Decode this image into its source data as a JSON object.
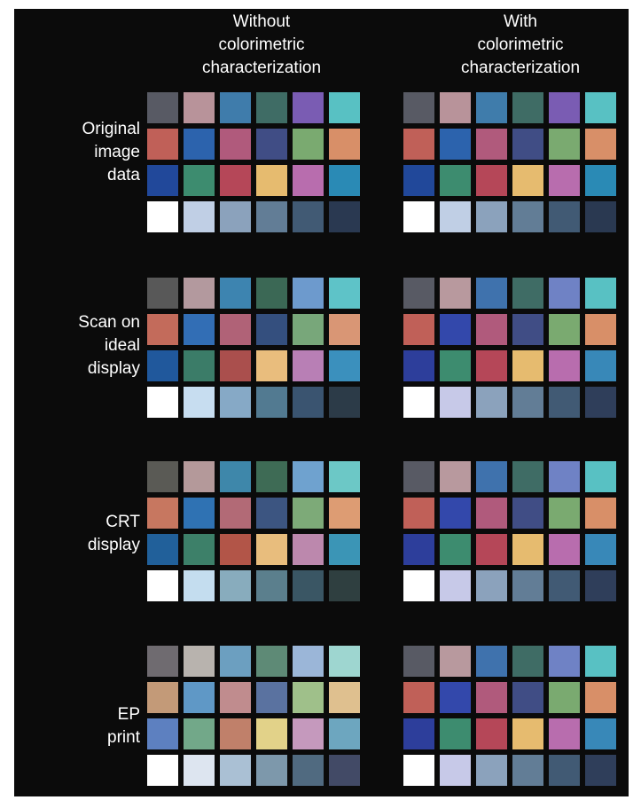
{
  "figure": {
    "columns": [
      {
        "label": "Without\ncolorimetric\ncharacterization"
      },
      {
        "label": "With\ncolorimetric\ncharacterization"
      }
    ],
    "rows": [
      {
        "label": "Original\nimage\ndata",
        "without": [
          [
            "#585a64",
            "#b8939a",
            "#3f7cab",
            "#3f6c65",
            "#7a5cb3",
            "#58c1c3"
          ],
          [
            "#c06058",
            "#2c63ad",
            "#b05a7c",
            "#404d85",
            "#7aaa70",
            "#d88f68"
          ],
          [
            "#21489a",
            "#3d8c6f",
            "#b54758",
            "#e6bb6f",
            "#b86dae",
            "#2a8ab5"
          ],
          [
            "#ffffff",
            "#c0cfe5",
            "#8ba2bc",
            "#627d96",
            "#415a74",
            "#2a3951"
          ]
        ],
        "with": [
          [
            "#585a64",
            "#b8939a",
            "#3f7cab",
            "#3f6c65",
            "#7a5cb3",
            "#58c1c3"
          ],
          [
            "#c06058",
            "#2c63ad",
            "#b05a7c",
            "#404d85",
            "#7aaa70",
            "#d88f68"
          ],
          [
            "#21489a",
            "#3d8c6f",
            "#b54758",
            "#e6bb6f",
            "#b86dae",
            "#2a8ab5"
          ],
          [
            "#ffffff",
            "#c0cfe5",
            "#8ba2bc",
            "#627d96",
            "#415a74",
            "#2a3951"
          ]
        ]
      },
      {
        "label": "Scan on\nideal\ndisplay",
        "without": [
          [
            "#585858",
            "#b3999e",
            "#3d84b0",
            "#3b6855",
            "#6d9acd",
            "#5ec3c8"
          ],
          [
            "#c36b5b",
            "#326eb5",
            "#b06277",
            "#344f7e",
            "#78a77a",
            "#d99675"
          ],
          [
            "#20589c",
            "#3b7c68",
            "#aa4f4d",
            "#e9bd7d",
            "#b87fb5",
            "#3b90bd"
          ],
          [
            "#ffffff",
            "#c7ddf0",
            "#86a9c6",
            "#527a91",
            "#3a5470",
            "#2c3b48"
          ]
        ],
        "with": [
          [
            "#585a64",
            "#b8999e",
            "#3f72ad",
            "#3f6c65",
            "#6f82c5",
            "#58c1c3"
          ],
          [
            "#c06058",
            "#3348ab",
            "#b05a7c",
            "#404d85",
            "#7aaa70",
            "#d88f68"
          ],
          [
            "#2d3e9b",
            "#3d8c6f",
            "#b54758",
            "#e6bb6f",
            "#b86dae",
            "#3888b8"
          ],
          [
            "#ffffff",
            "#c7c9e8",
            "#8ba2bc",
            "#627d96",
            "#415a74",
            "#2f3e5a"
          ]
        ]
      },
      {
        "label": "CRT\ndisplay",
        "without": [
          [
            "#5a5a55",
            "#b4999a",
            "#3e87aa",
            "#3e6b55",
            "#6fa2cf",
            "#6cc8c6"
          ],
          [
            "#c77760",
            "#2f72b3",
            "#b26a76",
            "#3c5581",
            "#7daa78",
            "#dd9c73"
          ],
          [
            "#21609a",
            "#3d8069",
            "#b25548",
            "#e8bd7d",
            "#bc88ad",
            "#3b95b6"
          ],
          [
            "#ffffff",
            "#c4ddef",
            "#88acbd",
            "#5b7f8d",
            "#3a5664",
            "#2f3f40"
          ]
        ],
        "with": [
          [
            "#585a64",
            "#b8999e",
            "#3f72ad",
            "#3f6c65",
            "#6f82c5",
            "#58c1c3"
          ],
          [
            "#c06058",
            "#3348ab",
            "#b05a7c",
            "#404d85",
            "#7aaa70",
            "#d88f68"
          ],
          [
            "#2d3e9b",
            "#3d8c6f",
            "#b54758",
            "#e6bb6f",
            "#b86dae",
            "#3888b8"
          ],
          [
            "#ffffff",
            "#c7c9e8",
            "#8ba2bc",
            "#627d96",
            "#415a74",
            "#2f3e5a"
          ]
        ]
      },
      {
        "label": "EP\nprint",
        "without": [
          [
            "#6f6b70",
            "#b8b3ae",
            "#6c9fc0",
            "#5e8a76",
            "#9bb6d8",
            "#9ed6d0"
          ],
          [
            "#c39a78",
            "#5f98c6",
            "#c08c8e",
            "#5a72a0",
            "#9fc08a",
            "#dfc08f"
          ],
          [
            "#5d80c0",
            "#72a889",
            "#c0806a",
            "#e2d289",
            "#c599bd",
            "#6da6bf"
          ],
          [
            "#ffffff",
            "#dde5f0",
            "#aac0d4",
            "#7d98ab",
            "#506a80",
            "#424a66"
          ]
        ],
        "with": [
          [
            "#585a64",
            "#b8999e",
            "#3f72ad",
            "#3f6c65",
            "#6f82c5",
            "#58c1c3"
          ],
          [
            "#c06058",
            "#3348ab",
            "#b05a7c",
            "#404d85",
            "#7aaa70",
            "#d88f68"
          ],
          [
            "#2d3e9b",
            "#3d8c6f",
            "#b54758",
            "#e6bb6f",
            "#b86dae",
            "#3888b8"
          ],
          [
            "#ffffff",
            "#c7c9e8",
            "#8ba2bc",
            "#627d96",
            "#415a74",
            "#2f3e5a"
          ]
        ]
      }
    ]
  }
}
